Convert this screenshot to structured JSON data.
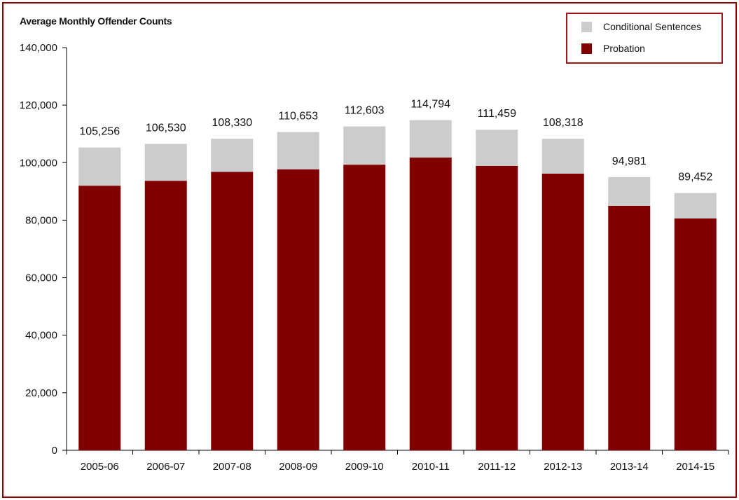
{
  "chart_data": {
    "type": "bar",
    "stacked": true,
    "title": "Average Monthly Offender Counts",
    "xlabel": "",
    "ylabel": "",
    "ylim": [
      0,
      140000
    ],
    "yticks": [
      "0",
      "20,000",
      "40,000",
      "60,000",
      "80,000",
      "100,000",
      "120,000",
      "140,000"
    ],
    "grid": false,
    "legend_position": "top-right",
    "categories": [
      "2005-06",
      "2006-07",
      "2007-08",
      "2008-09",
      "2009-10",
      "2010-11",
      "2011-12",
      "2012-13",
      "2013-14",
      "2014-15"
    ],
    "series": [
      {
        "name": "Probation",
        "color": "#800000",
        "values": [
          92000,
          93700,
          96800,
          97700,
          99300,
          101800,
          98900,
          96200,
          85000,
          80600
        ]
      },
      {
        "name": "Conditional Sentences",
        "color": "#cccccc",
        "values": [
          13256,
          12830,
          11530,
          12953,
          13303,
          12994,
          12559,
          12118,
          9981,
          8852
        ]
      }
    ],
    "totals": [
      105256,
      106530,
      108330,
      110653,
      112603,
      114794,
      111459,
      108318,
      94981,
      89452
    ],
    "total_labels": [
      "105,256",
      "106,530",
      "108,330",
      "110,653",
      "112,603",
      "114,794",
      "111,459",
      "108,318",
      "94,981",
      "89,452"
    ]
  }
}
